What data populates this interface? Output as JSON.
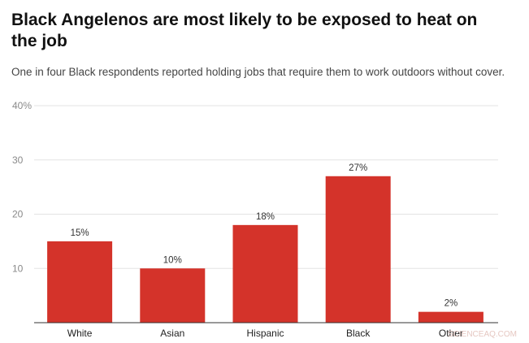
{
  "chart_data": {
    "type": "bar",
    "title": "Black Angelenos are most likely to be exposed to heat on the job",
    "subtitle": "One in four Black respondents reported holding jobs that require them to work outdoors without cover.",
    "categories": [
      "White",
      "Asian",
      "Hispanic",
      "Black",
      "Other"
    ],
    "values": [
      15,
      10,
      18,
      27,
      2
    ],
    "data_labels": [
      "15%",
      "10%",
      "18%",
      "27%",
      "2%"
    ],
    "ylim": [
      0,
      40
    ],
    "yticks": [
      10,
      20,
      30,
      40
    ],
    "ytick_labels": [
      "10",
      "20",
      "30",
      "40%"
    ],
    "xlabel": "",
    "ylabel": "",
    "grid": true,
    "bar_color": "#d4332a",
    "watermark": "SCIENCEAQ.COM"
  }
}
